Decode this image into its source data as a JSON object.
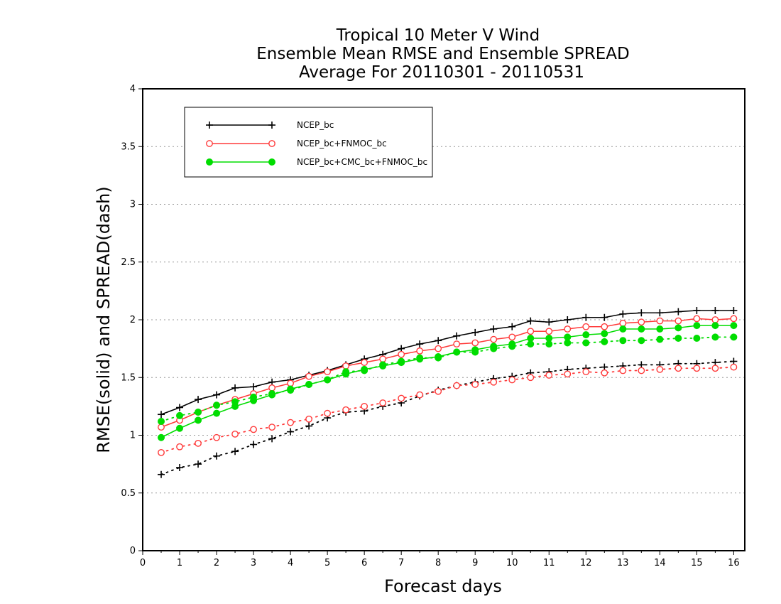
{
  "chart_data": {
    "type": "line",
    "title": [
      "Tropical 10 Meter V Wind",
      "Ensemble Mean RMSE and Ensemble SPREAD",
      "Average For 20110301 - 20110531"
    ],
    "xlabel": "Forecast days",
    "ylabel": "RMSE(solid) and SPREAD(dash)",
    "xlim": [
      0,
      16.3
    ],
    "ylim": [
      0,
      4
    ],
    "x_ticks": [
      0,
      1,
      2,
      3,
      4,
      5,
      6,
      7,
      8,
      9,
      10,
      11,
      12,
      13,
      14,
      15,
      16
    ],
    "y_ticks": [
      0,
      0.5,
      1,
      1.5,
      2,
      2.5,
      3,
      3.5,
      4
    ],
    "y_tick_labels": [
      "0",
      "0.5",
      "1",
      "1.5",
      "2",
      "2.5",
      "3",
      "3.5",
      "4"
    ],
    "grid": "horizontal dotted",
    "legend_position": "top-left",
    "x": [
      0.5,
      1,
      1.5,
      2,
      2.5,
      3,
      3.5,
      4,
      4.5,
      5,
      5.5,
      6,
      6.5,
      7,
      7.5,
      8,
      8.5,
      9,
      9.5,
      10,
      10.5,
      11,
      11.5,
      12,
      12.5,
      13,
      13.5,
      14,
      14.5,
      15,
      15.5,
      16
    ],
    "series": [
      {
        "name": "NCEP_bc",
        "color": "#000000",
        "marker": "plus",
        "rmse": [
          1.18,
          1.24,
          1.31,
          1.35,
          1.41,
          1.42,
          1.46,
          1.48,
          1.52,
          1.56,
          1.61,
          1.66,
          1.7,
          1.75,
          1.79,
          1.82,
          1.86,
          1.89,
          1.92,
          1.94,
          1.99,
          1.98,
          2.0,
          2.02,
          2.02,
          2.05,
          2.06,
          2.06,
          2.07,
          2.08,
          2.08,
          2.08
        ],
        "spread": [
          0.66,
          0.72,
          0.75,
          0.82,
          0.86,
          0.92,
          0.97,
          1.03,
          1.08,
          1.15,
          1.2,
          1.21,
          1.25,
          1.28,
          1.34,
          1.39,
          1.43,
          1.46,
          1.49,
          1.51,
          1.54,
          1.55,
          1.57,
          1.58,
          1.59,
          1.6,
          1.61,
          1.61,
          1.62,
          1.62,
          1.63,
          1.64
        ]
      },
      {
        "name": "NCEP_bc+FNMOC_bc",
        "color": "#ff3b3b",
        "marker": "open-circle",
        "rmse": [
          1.07,
          1.13,
          1.2,
          1.26,
          1.31,
          1.36,
          1.41,
          1.45,
          1.51,
          1.55,
          1.6,
          1.63,
          1.66,
          1.7,
          1.73,
          1.75,
          1.79,
          1.8,
          1.83,
          1.85,
          1.9,
          1.9,
          1.92,
          1.94,
          1.94,
          1.97,
          1.98,
          1.99,
          1.99,
          2.01,
          2.0,
          2.01
        ],
        "spread": [
          0.85,
          0.9,
          0.93,
          0.98,
          1.01,
          1.05,
          1.07,
          1.11,
          1.14,
          1.19,
          1.22,
          1.25,
          1.28,
          1.32,
          1.35,
          1.38,
          1.43,
          1.44,
          1.46,
          1.48,
          1.5,
          1.52,
          1.53,
          1.55,
          1.54,
          1.56,
          1.56,
          1.57,
          1.58,
          1.58,
          1.58,
          1.59
        ]
      },
      {
        "name": "NCEP_bc+CMC_bc+FNMOC_bc",
        "color": "#00dd00",
        "marker": "filled-circle",
        "rmse": [
          0.98,
          1.06,
          1.13,
          1.19,
          1.25,
          1.3,
          1.35,
          1.4,
          1.44,
          1.48,
          1.53,
          1.57,
          1.6,
          1.63,
          1.66,
          1.68,
          1.72,
          1.74,
          1.77,
          1.79,
          1.84,
          1.84,
          1.85,
          1.87,
          1.88,
          1.92,
          1.92,
          1.92,
          1.93,
          1.95,
          1.95,
          1.95
        ],
        "spread": [
          1.12,
          1.17,
          1.2,
          1.26,
          1.29,
          1.33,
          1.36,
          1.39,
          1.44,
          1.48,
          1.55,
          1.56,
          1.61,
          1.64,
          1.67,
          1.67,
          1.72,
          1.72,
          1.75,
          1.77,
          1.79,
          1.79,
          1.8,
          1.8,
          1.81,
          1.82,
          1.82,
          1.83,
          1.84,
          1.84,
          1.85,
          1.85
        ]
      }
    ]
  }
}
